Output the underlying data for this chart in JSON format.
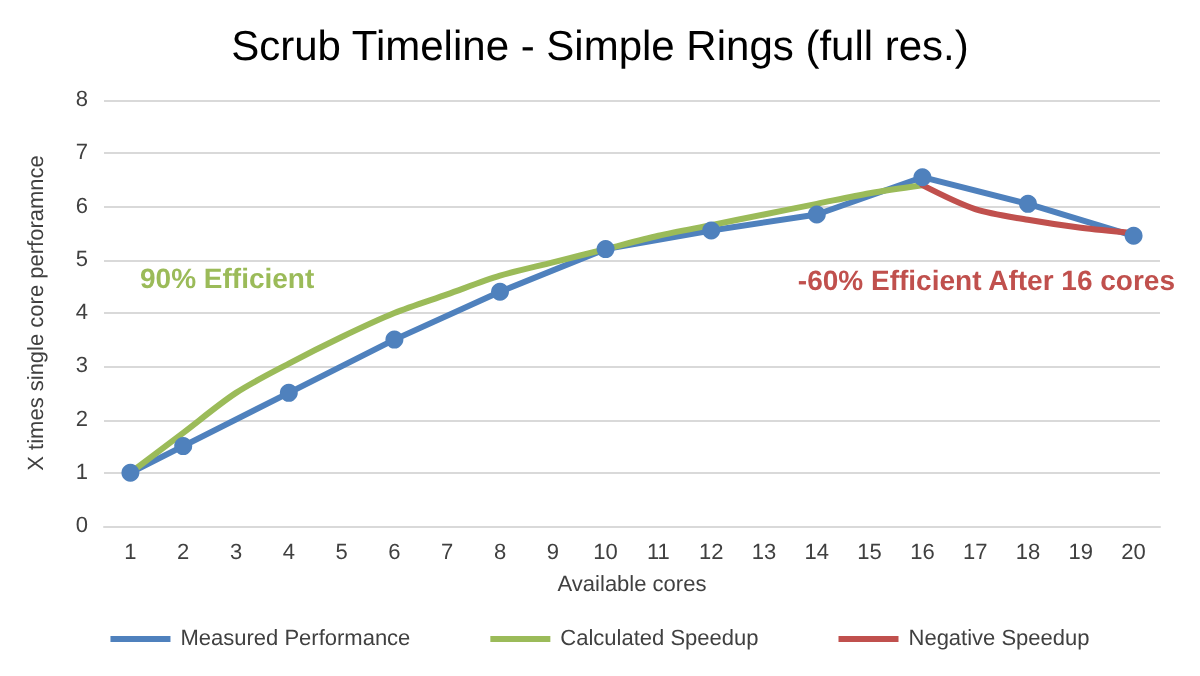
{
  "chart_data": {
    "type": "line",
    "title": "Scrub Timeline - Simple Rings (full res.)",
    "xlabel": "Available cores",
    "ylabel": "X times single core perforamnce",
    "categories": [
      "1",
      "2",
      "3",
      "4",
      "5",
      "6",
      "7",
      "8",
      "9",
      "10",
      "11",
      "12",
      "13",
      "14",
      "15",
      "16",
      "17",
      "18",
      "19",
      "20"
    ],
    "series": [
      {
        "name": "Measured Performance",
        "color": "#4f81bd",
        "marker": "circle",
        "values": [
          1.0,
          1.5,
          null,
          2.5,
          null,
          3.5,
          null,
          4.4,
          null,
          5.2,
          null,
          5.55,
          null,
          5.85,
          null,
          6.55,
          null,
          6.05,
          null,
          5.45
        ]
      },
      {
        "name": "Calculated Speedup",
        "color": "#9bbb59",
        "marker": "none",
        "values": [
          1.0,
          1.75,
          2.5,
          3.05,
          3.55,
          4.0,
          4.35,
          4.7,
          4.95,
          5.2,
          5.45,
          5.65,
          5.85,
          6.05,
          6.25,
          6.4,
          null,
          null,
          null,
          null
        ]
      },
      {
        "name": "Negative Speedup",
        "color": "#c0504d",
        "marker": "none",
        "values": [
          null,
          null,
          null,
          null,
          null,
          null,
          null,
          null,
          null,
          null,
          null,
          null,
          null,
          null,
          null,
          6.4,
          5.95,
          5.75,
          5.6,
          5.5
        ]
      }
    ],
    "ylim": [
      0,
      8
    ],
    "yticks": [
      0,
      1,
      2,
      3,
      4,
      5,
      6,
      7,
      8
    ],
    "grid": "y",
    "legend": "bottom",
    "annotations": [
      "90% Efficient",
      "-60% Efficient After 16 cores"
    ]
  }
}
